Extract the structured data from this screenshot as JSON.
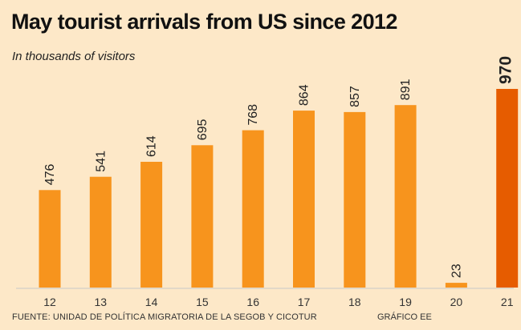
{
  "title": "May tourist arrivals from US since 2012",
  "subtitle": "In thousands of visitors",
  "source": "FUENTE: UNIDAD DE POLÍTICA MIGRATORIA DE LA SEGOB Y CICOTUR",
  "credit": "GRÁFICO EE",
  "colors": {
    "background": "#fde8c8",
    "bar": "#f7941d",
    "highlight_bar": "#e65c00",
    "baseline": "#c8c8c8"
  },
  "chart_data": {
    "type": "bar",
    "title": "May tourist arrivals from US since 2012",
    "subtitle": "In thousands of visitors",
    "categories": [
      "12",
      "13",
      "14",
      "15",
      "16",
      "17",
      "18",
      "19",
      "20",
      "21"
    ],
    "values": [
      476,
      541,
      614,
      695,
      768,
      864,
      857,
      891,
      23,
      970
    ],
    "data_labels": [
      "476",
      "541",
      "614",
      "695",
      "768",
      "864",
      "857",
      "891",
      "23",
      "970"
    ],
    "highlight_index": 9,
    "xlabel": "",
    "ylabel": "",
    "ylim": [
      0,
      970
    ],
    "grid": false,
    "legend": "none"
  }
}
